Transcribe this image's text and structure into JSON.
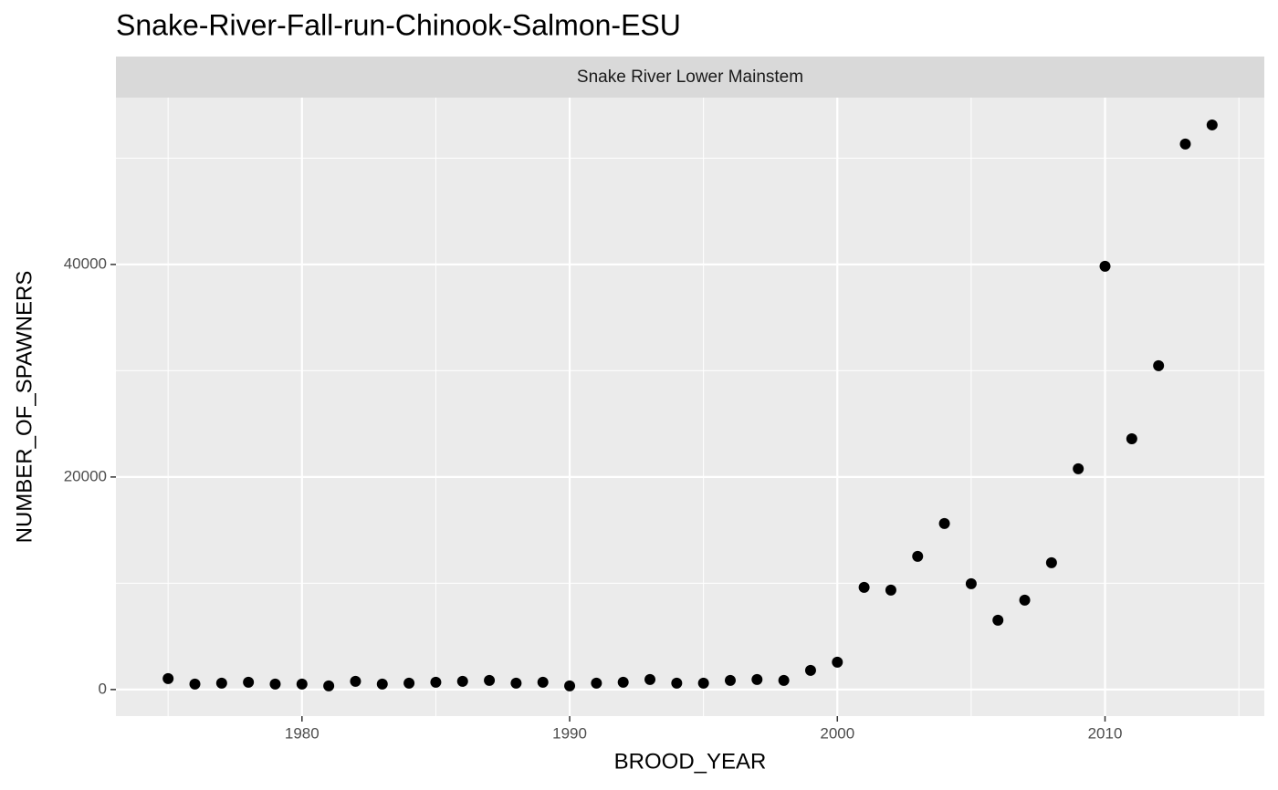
{
  "chart_data": {
    "type": "scatter",
    "title": "Snake-River-Fall-run-Chinook-Salmon-ESU",
    "facet_label": "Snake River Lower Mainstem",
    "x_label": "BROOD_YEAR",
    "y_label": "NUMBER_OF_SPAWNERS",
    "x": [
      1975,
      1976,
      1977,
      1978,
      1979,
      1980,
      1981,
      1982,
      1983,
      1984,
      1985,
      1986,
      1987,
      1988,
      1989,
      1990,
      1991,
      1992,
      1993,
      1994,
      1995,
      1996,
      1997,
      1998,
      1999,
      2000,
      2001,
      2002,
      2003,
      2004,
      2005,
      2006,
      2007,
      2008,
      2009,
      2010,
      2011,
      2012,
      2013,
      2014
    ],
    "values": [
      1030,
      515,
      600,
      690,
      515,
      515,
      340,
      770,
      515,
      600,
      690,
      770,
      860,
      600,
      690,
      340,
      600,
      690,
      945,
      600,
      600,
      860,
      945,
      860,
      1800,
      2575,
      9615,
      9355,
      12530,
      15620,
      9955,
      6525,
      8410,
      11930,
      20770,
      39830,
      23600,
      30470,
      51330,
      53130
    ],
    "color": "#000000",
    "xlim": [
      1973.05,
      2015.95
    ],
    "ylim": [
      -2500,
      55700
    ],
    "xticks": [
      1980,
      1990,
      2000,
      2010
    ],
    "yticks": [
      0,
      20000,
      40000
    ],
    "xminor": [
      1975,
      1985,
      1995,
      2005,
      2015
    ],
    "yminor": [
      10000,
      30000,
      50000
    ],
    "grid": true
  }
}
